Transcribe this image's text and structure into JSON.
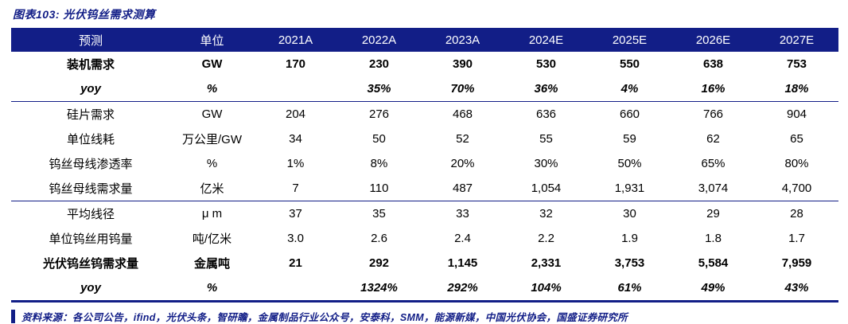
{
  "title": "图表103:  光伏钨丝需求测算",
  "colors": {
    "navy": "#121E87",
    "body_text": "#000000",
    "header_text": "#ffffff"
  },
  "table": {
    "headers": [
      "预测",
      "单位",
      "2021A",
      "2022A",
      "2023A",
      "2024E",
      "2025E",
      "2026E",
      "2027E"
    ],
    "rows": [
      {
        "label": "装机需求",
        "unit": "GW",
        "values": [
          "170",
          "230",
          "390",
          "530",
          "550",
          "638",
          "753"
        ],
        "style": "bold",
        "group_start": false
      },
      {
        "label": "yoy",
        "unit": "%",
        "values": [
          "",
          "35%",
          "70%",
          "36%",
          "4%",
          "16%",
          "18%"
        ],
        "style": "bold-italic",
        "group_start": false
      },
      {
        "label": "硅片需求",
        "unit": "GW",
        "values": [
          "204",
          "276",
          "468",
          "636",
          "660",
          "766",
          "904"
        ],
        "style": "normal",
        "group_start": true
      },
      {
        "label": "单位线耗",
        "unit": "万公里/GW",
        "values": [
          "34",
          "50",
          "52",
          "55",
          "59",
          "62",
          "65"
        ],
        "style": "normal",
        "group_start": false
      },
      {
        "label": "钨丝母线渗透率",
        "unit": "%",
        "values": [
          "1%",
          "8%",
          "20%",
          "30%",
          "50%",
          "65%",
          "80%"
        ],
        "style": "normal",
        "group_start": false
      },
      {
        "label": "钨丝母线需求量",
        "unit": "亿米",
        "values": [
          "7",
          "110",
          "487",
          "1,054",
          "1,931",
          "3,074",
          "4,700"
        ],
        "style": "normal",
        "group_start": false
      },
      {
        "label": "平均线径",
        "unit": "μ m",
        "values": [
          "37",
          "35",
          "33",
          "32",
          "30",
          "29",
          "28"
        ],
        "style": "normal",
        "group_start": true
      },
      {
        "label": "单位钨丝用钨量",
        "unit": "吨/亿米",
        "values": [
          "3.0",
          "2.6",
          "2.4",
          "2.2",
          "1.9",
          "1.8",
          "1.7"
        ],
        "style": "normal",
        "group_start": false
      },
      {
        "label": "光伏钨丝钨需求量",
        "unit": "金属吨",
        "values": [
          "21",
          "292",
          "1,145",
          "2,331",
          "3,753",
          "5,584",
          "7,959"
        ],
        "style": "bold",
        "group_start": false
      },
      {
        "label": "yoy",
        "unit": "%",
        "values": [
          "",
          "1324%",
          "292%",
          "104%",
          "61%",
          "49%",
          "43%"
        ],
        "style": "bold-italic",
        "group_start": false
      }
    ]
  },
  "footer": {
    "source": "资料来源：各公司公告，ifind，光伏头条，智研瞻，金属制品行业公众号，安泰科，SMM，能源新媒，中国光伏协会，国盛证券研究所"
  }
}
